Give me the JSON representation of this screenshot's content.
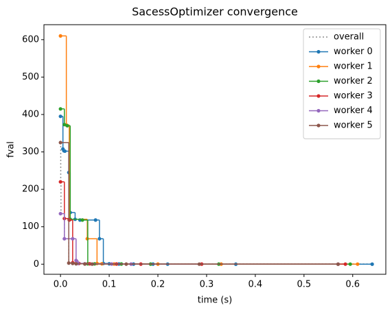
{
  "chart_data": {
    "type": "step",
    "title": "SacessOptimizer convergence",
    "x_label": "time (s)",
    "y_label": "fval",
    "xlim": [
      -0.034,
      0.668
    ],
    "ylim": [
      -27,
      640
    ],
    "xticks": [
      {
        "value": 0,
        "label": "0.0"
      },
      0.1,
      0.2,
      0.3,
      0.4,
      0.5,
      0.6
    ],
    "yticks": [
      0,
      100,
      200,
      300,
      400,
      500,
      600
    ],
    "legend": "upper right",
    "series": [
      {
        "name": "overall",
        "color": "#8c8c8c",
        "linestyle": "dotted",
        "marker": false,
        "x": [
          0,
          0.0005,
          0.001,
          0.008,
          0.017,
          0.025,
          0.05,
          0.64
        ],
        "values": [
          325,
          220,
          135,
          68,
          3,
          2,
          0.5,
          0.05
        ]
      },
      {
        "name": "worker 0",
        "color": "#1f77b4",
        "linestyle": "solid",
        "marker": true,
        "x": [
          0,
          0.005,
          0.007,
          0.009,
          0.017,
          0.02,
          0.03,
          0.04,
          0.072,
          0.08,
          0.088,
          0.1,
          0.12,
          0.15,
          0.19,
          0.22,
          0.36,
          0.64
        ],
        "values": [
          395,
          308,
          303,
          302,
          245,
          138,
          120,
          118,
          118,
          68,
          2,
          1,
          0.5,
          0.3,
          0.2,
          0.1,
          0.05,
          0.05
        ]
      },
      {
        "name": "worker 1",
        "color": "#ff7f0e",
        "linestyle": "solid",
        "marker": true,
        "x": [
          0,
          0.012,
          0.018,
          0.055,
          0.075,
          0.085,
          0.11,
          0.2,
          0.33,
          0.61
        ],
        "values": [
          610,
          372,
          120,
          68,
          2,
          1,
          0.5,
          0.3,
          0.2,
          0.1
        ]
      },
      {
        "name": "worker 2",
        "color": "#2ca02c",
        "linestyle": "solid",
        "marker": true,
        "x": [
          0,
          0.008,
          0.014,
          0.02,
          0.045,
          0.056,
          0.07,
          0.125,
          0.185,
          0.325,
          0.595
        ],
        "values": [
          415,
          373,
          370,
          120,
          118,
          1,
          0.8,
          0.5,
          0.3,
          0.2,
          0.1
        ]
      },
      {
        "name": "worker 3",
        "color": "#d62728",
        "linestyle": "solid",
        "marker": true,
        "x": [
          0,
          0.008,
          0.018,
          0.025,
          0.038,
          0.06,
          0.115,
          0.165,
          0.29,
          0.585
        ],
        "values": [
          220,
          122,
          118,
          4,
          2,
          1,
          0.5,
          0.3,
          0.2,
          0.1
        ]
      },
      {
        "name": "worker 4",
        "color": "#9467bd",
        "linestyle": "solid",
        "marker": true,
        "x": [
          0,
          0.008,
          0.025,
          0.032,
          0.036,
          0.05,
          0.105,
          0.145,
          0.57
        ],
        "values": [
          135,
          68,
          68,
          10,
          2,
          1,
          0.5,
          0.3,
          0.1
        ]
      },
      {
        "name": "worker 5",
        "color": "#8c564b",
        "linestyle": "solid",
        "marker": true,
        "x": [
          0,
          0.017,
          0.025,
          0.032,
          0.05,
          0.065,
          0.135,
          0.285,
          0.57
        ],
        "values": [
          325,
          3,
          2,
          1,
          0.5,
          0.3,
          0.2,
          0.1,
          0.05
        ]
      }
    ]
  }
}
